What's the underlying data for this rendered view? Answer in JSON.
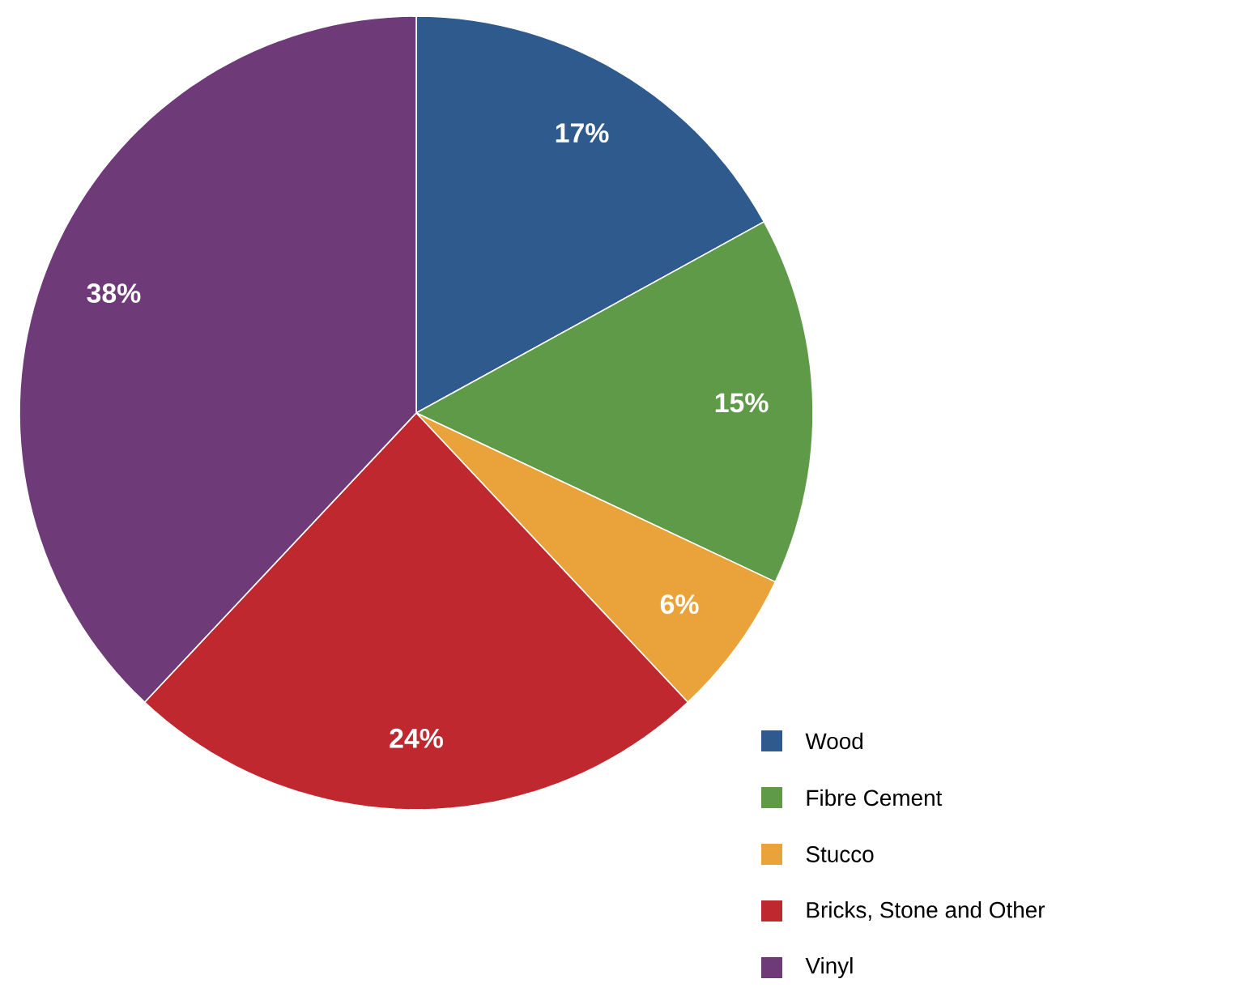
{
  "chart_data": {
    "type": "pie",
    "categories": [
      "Wood",
      "Fibre Cement",
      "Stucco",
      "Bricks, Stone and Other",
      "Vinyl"
    ],
    "values": [
      17,
      15,
      6,
      24,
      38
    ],
    "colors": [
      "#2e5a8e",
      "#5e9a48",
      "#e9a33a",
      "#c0282f",
      "#6e3b78"
    ],
    "value_labels": [
      "17%",
      "15%",
      "6%",
      "24%",
      "38%"
    ],
    "legend": "bottom right"
  }
}
